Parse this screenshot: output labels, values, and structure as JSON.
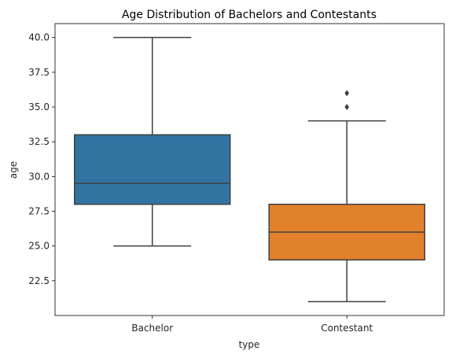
{
  "chart_data": {
    "type": "box",
    "title": "Age Distribution of Bachelors and Contestants",
    "xlabel": "type",
    "ylabel": "age",
    "categories": [
      "Bachelor",
      "Contestant"
    ],
    "ylim": [
      20.0,
      41.0
    ],
    "yticks": [
      "22.5",
      "25.0",
      "27.5",
      "30.0",
      "32.5",
      "35.0",
      "37.5",
      "40.0"
    ],
    "grid": false,
    "boxes": [
      {
        "category": "Bachelor",
        "whisker_low": 25.0,
        "q1": 28.0,
        "median": 29.5,
        "q3": 33.0,
        "whisker_high": 40.0,
        "outliers": [],
        "color": "#3274a1"
      },
      {
        "category": "Contestant",
        "whisker_low": 21.0,
        "q1": 24.0,
        "median": 26.0,
        "q3": 28.0,
        "whisker_high": 34.0,
        "outliers": [
          35.0,
          36.0
        ],
        "color": "#e1812c"
      }
    ]
  }
}
